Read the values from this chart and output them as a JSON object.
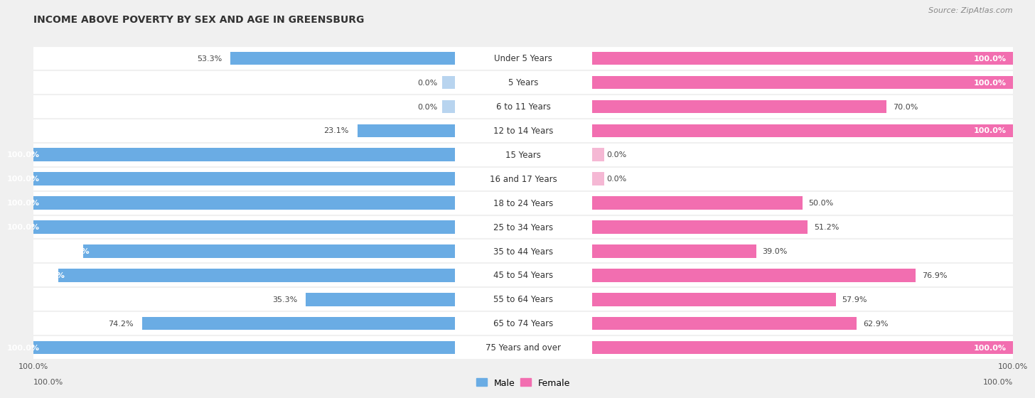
{
  "title": "INCOME ABOVE POVERTY BY SEX AND AGE IN GREENSBURG",
  "source": "Source: ZipAtlas.com",
  "categories": [
    "Under 5 Years",
    "5 Years",
    "6 to 11 Years",
    "12 to 14 Years",
    "15 Years",
    "16 and 17 Years",
    "18 to 24 Years",
    "25 to 34 Years",
    "35 to 44 Years",
    "45 to 54 Years",
    "55 to 64 Years",
    "65 to 74 Years",
    "75 Years and over"
  ],
  "male_values": [
    53.3,
    0.0,
    0.0,
    23.1,
    100.0,
    100.0,
    100.0,
    100.0,
    88.2,
    94.1,
    35.3,
    74.2,
    100.0
  ],
  "female_values": [
    100.0,
    100.0,
    70.0,
    100.0,
    0.0,
    0.0,
    50.0,
    51.2,
    39.0,
    76.9,
    57.9,
    62.9,
    100.0
  ],
  "male_color": "#6aace4",
  "female_color": "#f26eb0",
  "male_light_color": "#b8d4ef",
  "female_light_color": "#f5b8d4",
  "background_color": "#f0f0f0",
  "row_bg_color": "#ffffff",
  "row_bg_alt_color": "#f7f7f7",
  "title_fontsize": 10,
  "value_fontsize": 8,
  "label_fontsize": 8.5,
  "tick_fontsize": 8,
  "legend_fontsize": 9,
  "max_value": 100.0,
  "bar_height": 0.55
}
